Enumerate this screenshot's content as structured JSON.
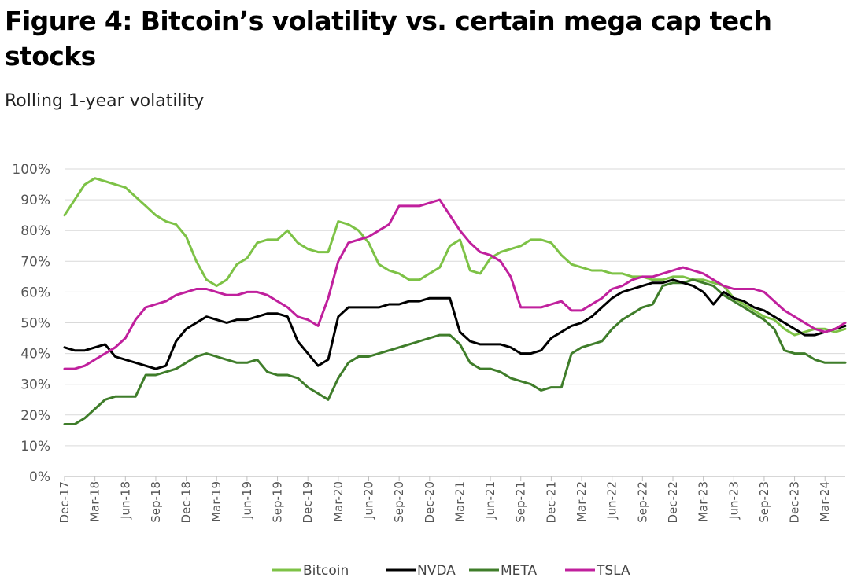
{
  "title": "Figure 4: Bitcoin’s volatility vs. certain mega cap tech stocks",
  "subtitle": "Rolling 1-year volatility",
  "chart_data": {
    "type": "line",
    "title": "Figure 4: Bitcoin’s volatility vs. certain mega cap tech stocks",
    "subtitle": "Rolling 1-year volatility",
    "xlabel": "",
    "ylabel": "",
    "ylim": [
      0,
      100
    ],
    "y_ticks": [
      "0%",
      "10%",
      "20%",
      "30%",
      "40%",
      "50%",
      "60%",
      "70%",
      "80%",
      "90%",
      "100%"
    ],
    "x_ticks": [
      "Dec-17",
      "Mar-18",
      "Jun-18",
      "Sep-18",
      "Dec-18",
      "Mar-19",
      "Jun-19",
      "Sep-19",
      "Dec-19",
      "Mar-20",
      "Jun-20",
      "Sep-20",
      "Dec-20",
      "Mar-21",
      "Jun-21",
      "Sep-21",
      "Dec-21",
      "Mar-22",
      "Jun-22",
      "Sep-22",
      "Dec-22",
      "Mar-23",
      "Jun-23",
      "Sep-23",
      "Dec-23",
      "Mar-24"
    ],
    "x_range": [
      "Dec-17",
      "May-24"
    ],
    "grid": "horizontal",
    "legend_position": "bottom",
    "series": [
      {
        "name": "Bitcoin",
        "color": "#7dc246",
        "x": [
          "Dec-17",
          "Jan-18",
          "Feb-18",
          "Mar-18",
          "Apr-18",
          "May-18",
          "Jun-18",
          "Jul-18",
          "Aug-18",
          "Sep-18",
          "Oct-18",
          "Nov-18",
          "Dec-18",
          "Jan-19",
          "Feb-19",
          "Mar-19",
          "Apr-19",
          "May-19",
          "Jun-19",
          "Jul-19",
          "Aug-19",
          "Sep-19",
          "Oct-19",
          "Nov-19",
          "Dec-19",
          "Jan-20",
          "Feb-20",
          "Mar-20",
          "Apr-20",
          "May-20",
          "Jun-20",
          "Jul-20",
          "Aug-20",
          "Sep-20",
          "Oct-20",
          "Nov-20",
          "Dec-20",
          "Jan-21",
          "Feb-21",
          "Mar-21",
          "Apr-21",
          "May-21",
          "Jun-21",
          "Jul-21",
          "Aug-21",
          "Sep-21",
          "Oct-21",
          "Nov-21",
          "Dec-21",
          "Jan-22",
          "Feb-22",
          "Mar-22",
          "Apr-22",
          "May-22",
          "Jun-22",
          "Jul-22",
          "Aug-22",
          "Sep-22",
          "Oct-22",
          "Nov-22",
          "Dec-22",
          "Jan-23",
          "Feb-23",
          "Mar-23",
          "Apr-23",
          "May-23",
          "Jun-23",
          "Jul-23",
          "Aug-23",
          "Sep-23",
          "Oct-23",
          "Nov-23",
          "Dec-23",
          "Jan-24",
          "Feb-24",
          "Mar-24",
          "Apr-24",
          "May-24"
        ],
        "values": [
          85,
          90,
          95,
          97,
          96,
          95,
          94,
          91,
          88,
          85,
          83,
          82,
          78,
          70,
          64,
          62,
          64,
          69,
          71,
          76,
          77,
          77,
          80,
          76,
          74,
          73,
          73,
          83,
          82,
          80,
          76,
          69,
          67,
          66,
          64,
          64,
          66,
          68,
          75,
          77,
          67,
          66,
          71,
          73,
          74,
          75,
          77,
          77,
          76,
          72,
          69,
          68,
          67,
          67,
          66,
          66,
          65,
          65,
          64,
          64,
          65,
          65,
          64,
          64,
          63,
          62,
          58,
          56,
          54,
          52,
          51,
          48,
          46,
          47,
          48,
          48,
          47,
          48
        ]
      },
      {
        "name": "NVDA",
        "color": "#000000",
        "x": [
          "Dec-17",
          "Jan-18",
          "Feb-18",
          "Mar-18",
          "Apr-18",
          "May-18",
          "Jun-18",
          "Jul-18",
          "Aug-18",
          "Sep-18",
          "Oct-18",
          "Nov-18",
          "Dec-18",
          "Jan-19",
          "Feb-19",
          "Mar-19",
          "Apr-19",
          "May-19",
          "Jun-19",
          "Jul-19",
          "Aug-19",
          "Sep-19",
          "Oct-19",
          "Nov-19",
          "Dec-19",
          "Jan-20",
          "Feb-20",
          "Mar-20",
          "Apr-20",
          "May-20",
          "Jun-20",
          "Jul-20",
          "Aug-20",
          "Sep-20",
          "Oct-20",
          "Nov-20",
          "Dec-20",
          "Jan-21",
          "Feb-21",
          "Mar-21",
          "Apr-21",
          "May-21",
          "Jun-21",
          "Jul-21",
          "Aug-21",
          "Sep-21",
          "Oct-21",
          "Nov-21",
          "Dec-21",
          "Jan-22",
          "Feb-22",
          "Mar-22",
          "Apr-22",
          "May-22",
          "Jun-22",
          "Jul-22",
          "Aug-22",
          "Sep-22",
          "Oct-22",
          "Nov-22",
          "Dec-22",
          "Jan-23",
          "Feb-23",
          "Mar-23",
          "Apr-23",
          "May-23",
          "Jun-23",
          "Jul-23",
          "Aug-23",
          "Sep-23",
          "Oct-23",
          "Nov-23",
          "Dec-23",
          "Jan-24",
          "Feb-24",
          "Mar-24",
          "Apr-24",
          "May-24"
        ],
        "values": [
          42,
          41,
          41,
          42,
          43,
          39,
          38,
          37,
          36,
          35,
          36,
          44,
          48,
          50,
          52,
          51,
          50,
          51,
          51,
          52,
          53,
          53,
          52,
          44,
          40,
          36,
          38,
          52,
          55,
          55,
          55,
          55,
          56,
          56,
          57,
          57,
          58,
          58,
          58,
          47,
          44,
          43,
          43,
          43,
          42,
          40,
          40,
          41,
          45,
          47,
          49,
          50,
          52,
          55,
          58,
          60,
          61,
          62,
          63,
          63,
          64,
          63,
          62,
          60,
          56,
          60,
          58,
          57,
          55,
          54,
          52,
          50,
          48,
          46,
          46,
          47,
          48,
          49
        ]
      },
      {
        "name": "META",
        "color": "#3f7d2a",
        "x": [
          "Dec-17",
          "Jan-18",
          "Feb-18",
          "Mar-18",
          "Apr-18",
          "May-18",
          "Jun-18",
          "Jul-18",
          "Aug-18",
          "Sep-18",
          "Oct-18",
          "Nov-18",
          "Dec-18",
          "Jan-19",
          "Feb-19",
          "Mar-19",
          "Apr-19",
          "May-19",
          "Jun-19",
          "Jul-19",
          "Aug-19",
          "Sep-19",
          "Oct-19",
          "Nov-19",
          "Dec-19",
          "Jan-20",
          "Feb-20",
          "Mar-20",
          "Apr-20",
          "May-20",
          "Jun-20",
          "Jul-20",
          "Aug-20",
          "Sep-20",
          "Oct-20",
          "Nov-20",
          "Dec-20",
          "Jan-21",
          "Feb-21",
          "Mar-21",
          "Apr-21",
          "May-21",
          "Jun-21",
          "Jul-21",
          "Aug-21",
          "Sep-21",
          "Oct-21",
          "Nov-21",
          "Dec-21",
          "Jan-22",
          "Feb-22",
          "Mar-22",
          "Apr-22",
          "May-22",
          "Jun-22",
          "Jul-22",
          "Aug-22",
          "Sep-22",
          "Oct-22",
          "Nov-22",
          "Dec-22",
          "Jan-23",
          "Feb-23",
          "Mar-23",
          "Apr-23",
          "May-23",
          "Jun-23",
          "Jul-23",
          "Aug-23",
          "Sep-23",
          "Oct-23",
          "Nov-23",
          "Dec-23",
          "Jan-24",
          "Feb-24",
          "Mar-24",
          "Apr-24",
          "May-24"
        ],
        "values": [
          17,
          17,
          19,
          22,
          25,
          26,
          26,
          26,
          33,
          33,
          34,
          35,
          37,
          39,
          40,
          39,
          38,
          37,
          37,
          38,
          34,
          33,
          33,
          32,
          29,
          27,
          25,
          32,
          37,
          39,
          39,
          40,
          41,
          42,
          43,
          44,
          45,
          46,
          46,
          43,
          37,
          35,
          35,
          34,
          32,
          31,
          30,
          28,
          29,
          29,
          40,
          42,
          43,
          44,
          48,
          51,
          53,
          55,
          56,
          62,
          63,
          63,
          64,
          63,
          62,
          59,
          57,
          55,
          53,
          51,
          48,
          41,
          40,
          40,
          38,
          37,
          37,
          37
        ]
      },
      {
        "name": "TSLA",
        "color": "#c0209d",
        "x": [
          "Dec-17",
          "Jan-18",
          "Feb-18",
          "Mar-18",
          "Apr-18",
          "May-18",
          "Jun-18",
          "Jul-18",
          "Aug-18",
          "Sep-18",
          "Oct-18",
          "Nov-18",
          "Dec-18",
          "Jan-19",
          "Feb-19",
          "Mar-19",
          "Apr-19",
          "May-19",
          "Jun-19",
          "Jul-19",
          "Aug-19",
          "Sep-19",
          "Oct-19",
          "Nov-19",
          "Dec-19",
          "Jan-20",
          "Feb-20",
          "Mar-20",
          "Apr-20",
          "May-20",
          "Jun-20",
          "Jul-20",
          "Aug-20",
          "Sep-20",
          "Oct-20",
          "Nov-20",
          "Dec-20",
          "Jan-21",
          "Feb-21",
          "Mar-21",
          "Apr-21",
          "May-21",
          "Jun-21",
          "Jul-21",
          "Aug-21",
          "Sep-21",
          "Oct-21",
          "Nov-21",
          "Dec-21",
          "Jan-22",
          "Feb-22",
          "Mar-22",
          "Apr-22",
          "May-22",
          "Jun-22",
          "Jul-22",
          "Aug-22",
          "Sep-22",
          "Oct-22",
          "Nov-22",
          "Dec-22",
          "Jan-23",
          "Feb-23",
          "Mar-23",
          "Apr-23",
          "May-23",
          "Jun-23",
          "Jul-23",
          "Aug-23",
          "Sep-23",
          "Oct-23",
          "Nov-23",
          "Dec-23",
          "Jan-24",
          "Feb-24",
          "Mar-24",
          "Apr-24",
          "May-24"
        ],
        "values": [
          35,
          35,
          36,
          38,
          40,
          42,
          45,
          51,
          55,
          56,
          57,
          59,
          60,
          61,
          61,
          60,
          59,
          59,
          60,
          60,
          59,
          57,
          55,
          52,
          51,
          49,
          58,
          70,
          76,
          77,
          78,
          80,
          82,
          88,
          88,
          88,
          89,
          90,
          85,
          80,
          76,
          73,
          72,
          70,
          65,
          55,
          55,
          55,
          56,
          57,
          54,
          54,
          56,
          58,
          61,
          62,
          64,
          65,
          65,
          66,
          67,
          68,
          67,
          66,
          64,
          62,
          61,
          61,
          61,
          60,
          57,
          54,
          52,
          50,
          48,
          47,
          48,
          50
        ]
      }
    ]
  }
}
